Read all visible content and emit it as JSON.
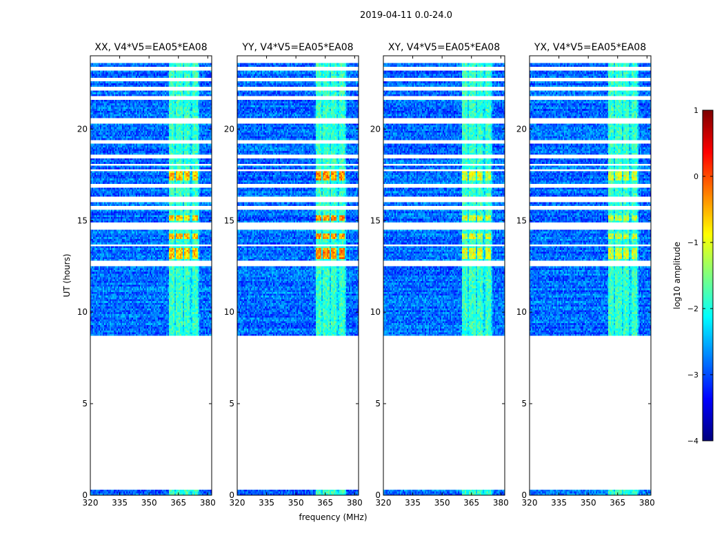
{
  "chart_data": {
    "type": "heatmap",
    "suptitle": "2019-04-11 0.0-24.0",
    "xlabel": "frequency (MHz)",
    "ylabel": "UT (hours)",
    "xlim": [
      320,
      382
    ],
    "ylim": [
      0,
      24
    ],
    "xticks": [
      320,
      335,
      350,
      365,
      380
    ],
    "yticks": [
      0,
      5,
      10,
      15,
      20
    ],
    "panels": [
      {
        "title": "XX, V4*V5=EA05*EA08",
        "rfi_peak": -0.2
      },
      {
        "title": "YY, V4*V5=EA05*EA08",
        "rfi_peak": 0.1
      },
      {
        "title": "XY, V4*V5=EA05*EA08",
        "rfi_peak": -0.6
      },
      {
        "title": "YX, V4*V5=EA05*EA08",
        "rfi_peak": -0.7
      }
    ],
    "data_hour_ranges": [
      [
        0.0,
        0.3
      ],
      [
        8.7,
        24.0
      ]
    ],
    "blank_hours": [
      [
        12.5,
        12.8
      ],
      [
        13.6,
        13.7
      ],
      [
        14.5,
        14.9
      ],
      [
        15.6,
        15.8
      ],
      [
        16.0,
        16.3
      ],
      [
        16.8,
        17.0
      ],
      [
        17.7,
        17.8
      ],
      [
        18.0,
        18.1
      ],
      [
        18.4,
        18.6
      ],
      [
        19.2,
        19.4
      ],
      [
        20.3,
        20.6
      ],
      [
        21.6,
        21.8
      ],
      [
        22.1,
        22.3
      ],
      [
        22.6,
        22.8
      ],
      [
        23.2,
        23.4
      ],
      [
        23.6,
        24.0
      ]
    ],
    "rfi_band_mhz": [
      360,
      376
    ],
    "rfi_channels_mhz": [
      [
        360,
        363
      ],
      [
        364,
        367
      ],
      [
        368,
        371
      ],
      [
        372,
        375
      ]
    ],
    "rfi_bright_hours": [
      [
        12.9,
        13.5
      ],
      [
        14.0,
        14.3
      ],
      [
        15.0,
        15.3
      ],
      [
        17.2,
        17.8
      ]
    ],
    "colorbar": {
      "label": "log10 amplitude",
      "min": -4,
      "max": 1,
      "ticks": [
        1,
        0,
        -1,
        -2,
        -3,
        -4
      ],
      "tick_labels": [
        "1",
        "0",
        "−1",
        "−2",
        "−3",
        "−4"
      ],
      "colormap": [
        "#00007f",
        "#0000ff",
        "#007fff",
        "#00ffff",
        "#7fff7f",
        "#ffff00",
        "#ff7f00",
        "#ff0000",
        "#7f0000"
      ]
    }
  }
}
